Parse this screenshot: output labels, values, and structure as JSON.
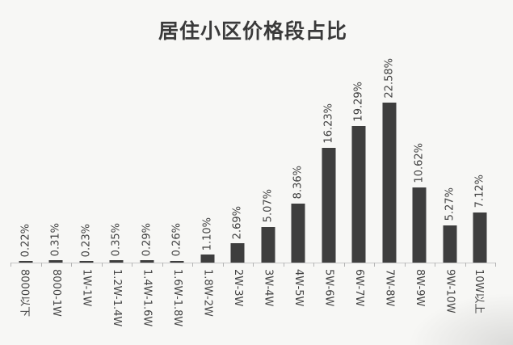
{
  "page": {
    "background": "#f7f7f5"
  },
  "chart": {
    "title_color": "#3a3a3a",
    "bar_color": "#3e3e3e",
    "axis_color": "#c6c6c6",
    "tick_color": "#b4b4b4",
    "value_label_color": "#404040",
    "x_label_color": "#454545"
  },
  "chart_data": {
    "type": "bar",
    "title": "居住小区价格段占比",
    "categories": [
      "8000以下",
      "8000-1W",
      "1W-1W",
      "1.2W-1.4W",
      "1.4W-1.6W",
      "1.6W-1.8W",
      "1.8W-2W",
      "2W-3W",
      "3W-4W",
      "4W-5W",
      "5W-6W",
      "6W-7W",
      "7W-8W",
      "8W-9W",
      "9W-10W",
      "10W以上"
    ],
    "values": [
      0.22,
      0.31,
      0.23,
      0.35,
      0.29,
      0.26,
      1.1,
      2.69,
      5.07,
      8.36,
      16.23,
      19.29,
      22.58,
      10.62,
      5.27,
      7.12
    ],
    "value_labels": [
      "0.22%",
      "0.31%",
      "0.23%",
      "0.35%",
      "0.29%",
      "0.26%",
      "1.10%",
      "2.69%",
      "5.07%",
      "8.36%",
      "16.23%",
      "19.29%",
      "22.58%",
      "10.62%",
      "5.27%",
      "7.12%"
    ],
    "xlabel": "",
    "ylabel": "",
    "ylim": [
      0,
      25
    ],
    "grid": false,
    "legend": false,
    "value_label_rotation": -90,
    "x_tick_label_rotation": 90,
    "bar_color": "#3e3e3e",
    "background": "#f7f7f5"
  }
}
